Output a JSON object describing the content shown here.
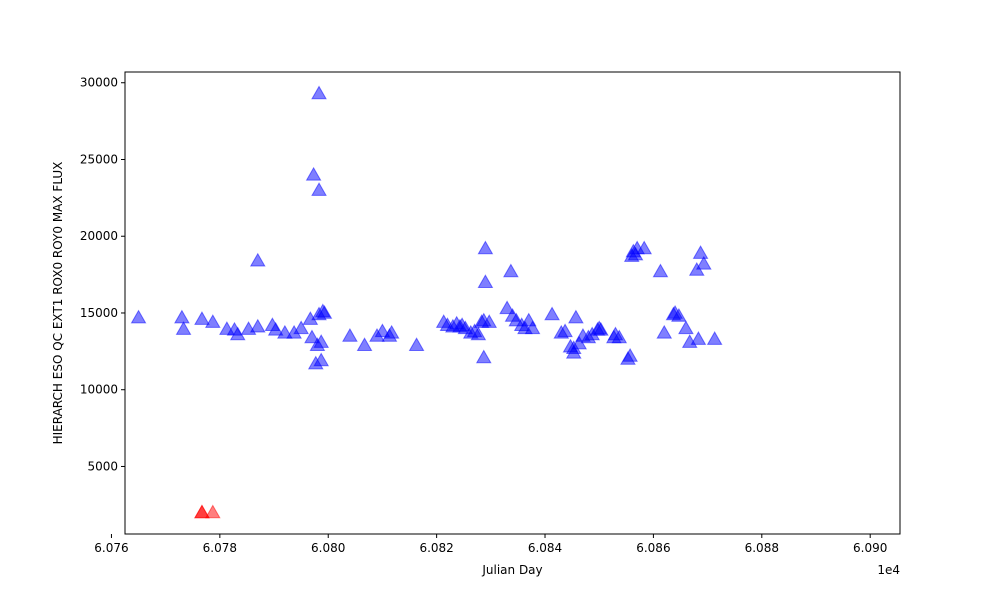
{
  "chart_data": {
    "type": "scatter",
    "title": "",
    "xlabel": "Julian Day",
    "ylabel": "HIERARCH ESO QC EXT1 ROX0 ROY0 MAX FLUX",
    "x_offset_label": "1e4",
    "xlim": [
      60.7625,
      60.9055
    ],
    "ylim": [
      600,
      30700
    ],
    "x_ticks": [
      60.76,
      60.78,
      60.8,
      60.82,
      60.84,
      60.86,
      60.88,
      60.9
    ],
    "x_tick_labels": [
      "6.076",
      "6.078",
      "6.080",
      "6.082",
      "6.084",
      "6.086",
      "6.088",
      "6.090"
    ],
    "y_ticks": [
      5000,
      10000,
      15000,
      20000,
      25000,
      30000
    ],
    "y_tick_labels": [
      "5000",
      "10000",
      "15000",
      "20000",
      "25000",
      "30000"
    ],
    "grid": false,
    "marker": "triangle-up",
    "series": [
      {
        "color": "#0000ff",
        "opacity": 0.5,
        "points": [
          [
            60.765,
            14700
          ],
          [
            60.773,
            14700
          ],
          [
            60.7733,
            13950
          ],
          [
            60.7767,
            14600
          ],
          [
            60.7787,
            14400
          ],
          [
            60.7813,
            13950
          ],
          [
            60.7827,
            13900
          ],
          [
            60.7833,
            13600
          ],
          [
            60.7853,
            13950
          ],
          [
            60.787,
            14100
          ],
          [
            60.787,
            18400
          ],
          [
            60.7897,
            14200
          ],
          [
            60.7903,
            13900
          ],
          [
            60.792,
            13700
          ],
          [
            60.7937,
            13700
          ],
          [
            60.795,
            14000
          ],
          [
            60.7967,
            14600
          ],
          [
            60.797,
            13400
          ],
          [
            60.7973,
            24000
          ],
          [
            60.7977,
            11700
          ],
          [
            60.798,
            12900
          ],
          [
            60.7983,
            14900
          ],
          [
            60.7983,
            23000
          ],
          [
            60.7983,
            29300
          ],
          [
            60.7987,
            11900
          ],
          [
            60.7987,
            13100
          ],
          [
            60.799,
            15100
          ],
          [
            60.7993,
            15000
          ],
          [
            60.804,
            13500
          ],
          [
            60.8067,
            12900
          ],
          [
            60.809,
            13500
          ],
          [
            60.81,
            13800
          ],
          [
            60.8113,
            13500
          ],
          [
            60.8117,
            13700
          ],
          [
            60.8163,
            12900
          ],
          [
            60.8213,
            14400
          ],
          [
            60.822,
            14200
          ],
          [
            60.823,
            14100
          ],
          [
            60.8237,
            14300
          ],
          [
            60.8243,
            14100
          ],
          [
            60.8247,
            14200
          ],
          [
            60.8253,
            14000
          ],
          [
            60.8263,
            13700
          ],
          [
            60.827,
            13800
          ],
          [
            60.8277,
            13600
          ],
          [
            60.8283,
            14400
          ],
          [
            60.8287,
            14500
          ],
          [
            60.8287,
            12100
          ],
          [
            60.829,
            19200
          ],
          [
            60.829,
            17000
          ],
          [
            60.8297,
            14400
          ],
          [
            60.833,
            15300
          ],
          [
            60.8337,
            17700
          ],
          [
            60.834,
            14800
          ],
          [
            60.8347,
            14500
          ],
          [
            60.8357,
            14200
          ],
          [
            60.8363,
            14000
          ],
          [
            60.837,
            14500
          ],
          [
            60.8377,
            14000
          ],
          [
            60.8413,
            14900
          ],
          [
            60.843,
            13700
          ],
          [
            60.8437,
            13800
          ],
          [
            60.8447,
            12800
          ],
          [
            60.8453,
            12400
          ],
          [
            60.8453,
            12700
          ],
          [
            60.8457,
            14700
          ],
          [
            60.8463,
            13000
          ],
          [
            60.847,
            13500
          ],
          [
            60.848,
            13400
          ],
          [
            60.8487,
            13600
          ],
          [
            60.8497,
            13900
          ],
          [
            60.85,
            14000
          ],
          [
            60.8503,
            13900
          ],
          [
            60.8527,
            13400
          ],
          [
            60.853,
            13600
          ],
          [
            60.8537,
            13400
          ],
          [
            60.8553,
            12000
          ],
          [
            60.8557,
            12200
          ],
          [
            60.856,
            18700
          ],
          [
            60.8563,
            19000
          ],
          [
            60.8567,
            18800
          ],
          [
            60.857,
            19200
          ],
          [
            60.8583,
            19200
          ],
          [
            60.8613,
            17700
          ],
          [
            60.862,
            13700
          ],
          [
            60.8637,
            14900
          ],
          [
            60.864,
            15000
          ],
          [
            60.8647,
            14800
          ],
          [
            60.866,
            14000
          ],
          [
            60.8667,
            13100
          ],
          [
            60.868,
            17800
          ],
          [
            60.8683,
            13300
          ],
          [
            60.8687,
            18900
          ],
          [
            60.8693,
            18200
          ],
          [
            60.8713,
            13300
          ]
        ]
      },
      {
        "color": "#ff0000",
        "opacity": 0.5,
        "points": [
          [
            60.7767,
            2000
          ],
          [
            60.7767,
            2000
          ],
          [
            60.7787,
            2000
          ]
        ]
      }
    ]
  }
}
